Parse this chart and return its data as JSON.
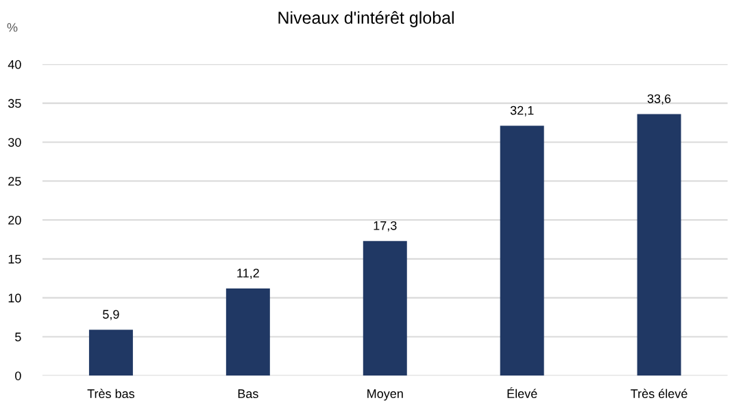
{
  "chart_data": {
    "type": "bar",
    "title": "Niveaux d'intérêt global",
    "ylabel": "%",
    "categories": [
      "Très bas",
      "Bas",
      "Moyen",
      "Élevé",
      "Très élevé"
    ],
    "series": [
      {
        "color": "#203864",
        "values": [
          5.9,
          11.2,
          17.3,
          32.1,
          33.6
        ],
        "value_labels": [
          "5,9",
          "11,2",
          "17,3",
          "32,1",
          "33,6"
        ]
      }
    ],
    "ylim": [
      0,
      40
    ],
    "yticks": [
      0,
      5,
      10,
      15,
      20,
      25,
      30,
      35,
      40
    ],
    "grid": "y",
    "legend": false
  }
}
